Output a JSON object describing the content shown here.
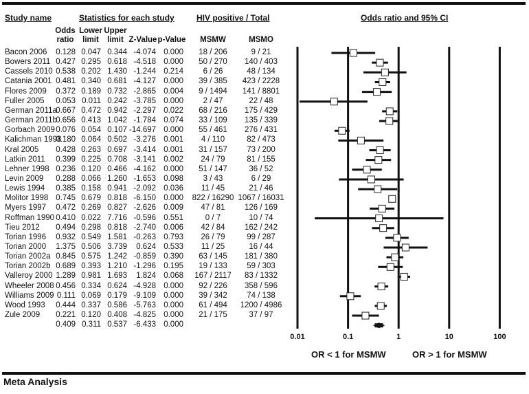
{
  "headers": {
    "study_name": "Study name",
    "stats_group": "Statistics for each study",
    "hiv_group": "HIV positive / Total",
    "plot_group": "Odds ratio and 95% CI",
    "odds_ratio": [
      "Odds",
      "ratio"
    ],
    "lower": [
      "Lower",
      "limit"
    ],
    "upper": [
      "Upper",
      "limit"
    ],
    "z": "Z-Value",
    "p": "p-Value",
    "msmw": "MSMW",
    "msmo": "MSMO"
  },
  "footer": {
    "left_label": "OR < 1 for MSMW",
    "right_label": "OR > 1 for MSMW",
    "section_title": "Meta Analysis"
  },
  "chart_data": {
    "type": "forest",
    "title": "Odds ratio and 95% CI",
    "xscale": "log",
    "xlim": [
      0.01,
      100
    ],
    "ticks": [
      "0.01",
      "0.1",
      "1",
      "10",
      "100"
    ],
    "xlabel_left": "OR < 1 for MSMW",
    "xlabel_right": "OR > 1 for MSMW",
    "studies": [
      {
        "name": "Bacon 2006",
        "or": "0.128",
        "ll": "0.047",
        "ul": "0.344",
        "z": "-4.074",
        "p": "0.000",
        "msmw": "18 / 206",
        "msmo": "9 / 21"
      },
      {
        "name": "Bowers 2011",
        "or": "0.427",
        "ll": "0.295",
        "ul": "0.618",
        "z": "-4.518",
        "p": "0.000",
        "msmw": "50 / 270",
        "msmo": "140 / 403"
      },
      {
        "name": "Cassels 2010",
        "or": "0.538",
        "ll": "0.202",
        "ul": "1.430",
        "z": "-1.244",
        "p": "0.214",
        "msmw": "6 / 26",
        "msmo": "48 / 134"
      },
      {
        "name": "Catania 2001",
        "or": "0.481",
        "ll": "0.340",
        "ul": "0.681",
        "z": "-4.127",
        "p": "0.000",
        "msmw": "39 / 385",
        "msmo": "423 / 2228"
      },
      {
        "name": "Flores 2009",
        "or": "0.372",
        "ll": "0.189",
        "ul": "0.732",
        "z": "-2.865",
        "p": "0.004",
        "msmw": "9 / 1494",
        "msmo": "141 / 8801"
      },
      {
        "name": "Fuller 2005",
        "or": "0.053",
        "ll": "0.011",
        "ul": "0.242",
        "z": "-3.785",
        "p": "0.000",
        "msmw": "2 / 47",
        "msmo": "22 / 48"
      },
      {
        "name": "German 2011a",
        "or": "0.667",
        "ll": "0.472",
        "ul": "0.942",
        "z": "-2.297",
        "p": "0.022",
        "msmw": "68 / 216",
        "msmo": "175 / 429"
      },
      {
        "name": "German 2011b",
        "or": "0.656",
        "ll": "0.413",
        "ul": "1.042",
        "z": "-1.784",
        "p": "0.074",
        "msmw": "33 / 109",
        "msmo": "135 / 339"
      },
      {
        "name": "Gorbach 2009",
        "or": "0.076",
        "ll": "0.054",
        "ul": "0.107",
        "z": "-14.697",
        "p": "0.000",
        "msmw": "55 / 461",
        "msmo": "276 / 431"
      },
      {
        "name": "Kalichman 1998",
        "or": "0.180",
        "ll": "0.064",
        "ul": "0.502",
        "z": "-3.276",
        "p": "0.001",
        "msmw": "4 / 110",
        "msmo": "82 / 473"
      },
      {
        "name": "Kral 2005",
        "or": "0.428",
        "ll": "0.263",
        "ul": "0.697",
        "z": "-3.414",
        "p": "0.001",
        "msmw": "31 / 157",
        "msmo": "73 / 200"
      },
      {
        "name": "Latkin 2011",
        "or": "0.399",
        "ll": "0.225",
        "ul": "0.708",
        "z": "-3.141",
        "p": "0.002",
        "msmw": "24 / 79",
        "msmo": "81 / 155"
      },
      {
        "name": "Lehner 1998",
        "or": "0.236",
        "ll": "0.120",
        "ul": "0.466",
        "z": "-4.162",
        "p": "0.000",
        "msmw": "51 / 147",
        "msmo": "36 / 52"
      },
      {
        "name": "Levin 2009",
        "or": "0.288",
        "ll": "0.066",
        "ul": "1.260",
        "z": "-1.653",
        "p": "0.098",
        "msmw": "3 / 43",
        "msmo": "6 / 29"
      },
      {
        "name": "Lewis 1994",
        "or": "0.385",
        "ll": "0.158",
        "ul": "0.941",
        "z": "-2.092",
        "p": "0.036",
        "msmw": "11 / 45",
        "msmo": "21 / 46"
      },
      {
        "name": "Molitor 1998",
        "or": "0.745",
        "ll": "0.679",
        "ul": "0.818",
        "z": "-6.150",
        "p": "0.000",
        "msmw": "822 / 16290",
        "msmo": "1067 / 16031"
      },
      {
        "name": "Myers 1997",
        "or": "0.472",
        "ll": "0.269",
        "ul": "0.827",
        "z": "-2.626",
        "p": "0.009",
        "msmw": "47 / 81",
        "msmo": "126 / 169"
      },
      {
        "name": "Roffman 1990",
        "or": "0.410",
        "ll": "0.022",
        "ul": "7.716",
        "z": "-0.596",
        "p": "0.551",
        "msmw": "0 / 7",
        "msmo": "10 / 74"
      },
      {
        "name": "Tieu 2012",
        "or": "0.494",
        "ll": "0.298",
        "ul": "0.818",
        "z": "-2.740",
        "p": "0.006",
        "msmw": "42 / 84",
        "msmo": "162 / 242"
      },
      {
        "name": "Torian 1996",
        "or": "0.932",
        "ll": "0.549",
        "ul": "1.581",
        "z": "-0.263",
        "p": "0.793",
        "msmw": "26 / 79",
        "msmo": "99 / 287"
      },
      {
        "name": "Torian 2000",
        "or": "1.375",
        "ll": "0.506",
        "ul": "3.739",
        "z": "0.624",
        "p": "0.533",
        "msmw": "11 / 25",
        "msmo": "16 / 44"
      },
      {
        "name": "Torian 2002a",
        "or": "0.845",
        "ll": "0.575",
        "ul": "1.242",
        "z": "-0.859",
        "p": "0.390",
        "msmw": "63 / 145",
        "msmo": "181 / 380"
      },
      {
        "name": "Torian 2002b",
        "or": "0.689",
        "ll": "0.393",
        "ul": "1.210",
        "z": "-1.296",
        "p": "0.195",
        "msmw": "19 / 133",
        "msmo": "59 / 303"
      },
      {
        "name": "Valleroy 2000",
        "or": "1.289",
        "ll": "0.981",
        "ul": "1.693",
        "z": "1.824",
        "p": "0.068",
        "msmw": "167 / 2117",
        "msmo": "83 / 1332"
      },
      {
        "name": "Wheeler 2008",
        "or": "0.456",
        "ll": "0.334",
        "ul": "0.624",
        "z": "-4.928",
        "p": "0.000",
        "msmw": "92 / 226",
        "msmo": "358 / 596"
      },
      {
        "name": "Williams 2009",
        "or": "0.111",
        "ll": "0.069",
        "ul": "0.179",
        "z": "-9.109",
        "p": "0.000",
        "msmw": "39 / 342",
        "msmo": "74 / 138"
      },
      {
        "name": "Wood 1993",
        "or": "0.444",
        "ll": "0.337",
        "ul": "0.586",
        "z": "-5.763",
        "p": "0.000",
        "msmw": "61 / 494",
        "msmo": "1200 / 4986"
      },
      {
        "name": "Zule 2009",
        "or": "0.221",
        "ll": "0.120",
        "ul": "0.408",
        "z": "-4.825",
        "p": "0.000",
        "msmw": "21 / 175",
        "msmo": "37 / 97"
      }
    ],
    "pooled": {
      "name": "",
      "or": "0.409",
      "ll": "0.311",
      "ul": "0.537",
      "z": "-6.433",
      "p": "0.000"
    }
  }
}
